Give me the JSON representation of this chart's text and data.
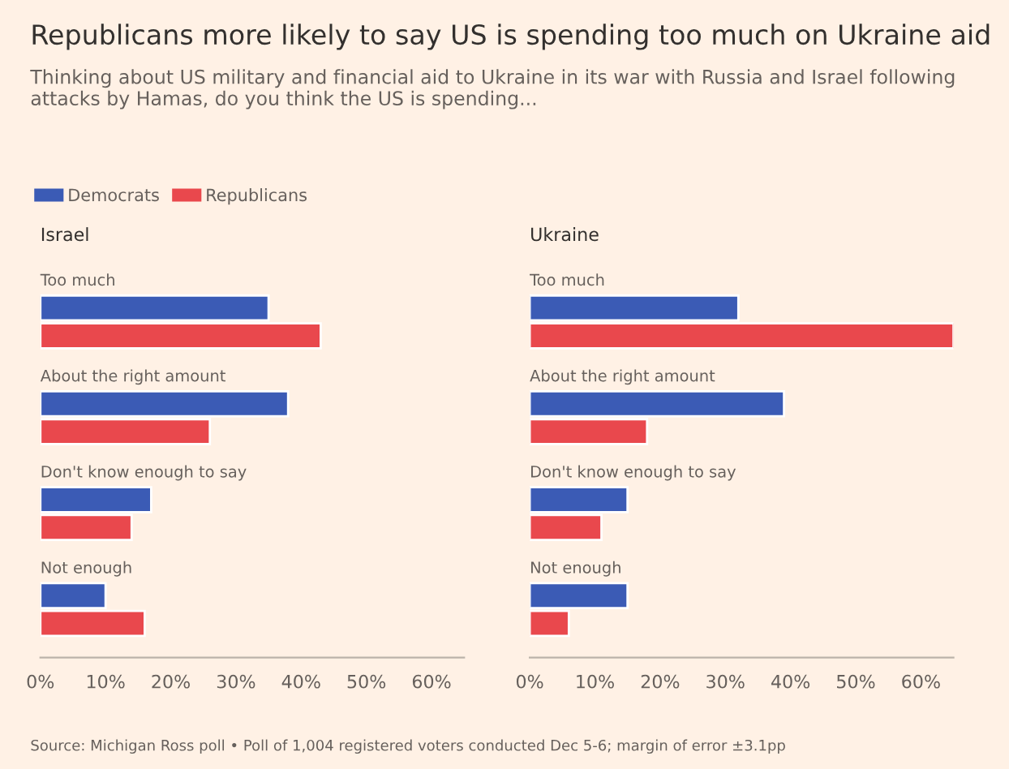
{
  "chart_data": [
    {
      "type": "bar",
      "orientation": "horizontal",
      "title": "Republicans more likely to say US is spending too much on Ukraine aid",
      "subtitle": "Thinking about US military and financial aid to Ukraine in its war with Russia and Israel following attacks by Hamas, do you think the US is spending...",
      "legend": "top left",
      "xlabel": "Israel",
      "categories": [
        "Too much",
        "About the right amount",
        "Don't know enough to say",
        "Not enough"
      ],
      "series": [
        {
          "name": "Democrats",
          "color": "#3b5bb5",
          "values": [
            35,
            38,
            17,
            10
          ]
        },
        {
          "name": "Republicans",
          "color": "#e9484d",
          "values": [
            43,
            26,
            14,
            16
          ]
        }
      ],
      "xlim": [
        0,
        65
      ],
      "xticks": [
        {
          "value": 0,
          "label": "0%"
        },
        {
          "value": 10,
          "label": "10%"
        },
        {
          "value": 20,
          "label": "20%"
        },
        {
          "value": 30,
          "label": "30%"
        },
        {
          "value": 40,
          "label": "40%"
        },
        {
          "value": 50,
          "label": "50%"
        },
        {
          "value": 60,
          "label": "60%"
        }
      ],
      "grid": false,
      "annotations": [
        "Source: Michigan Ross poll • Poll of 1,004 registered voters conducted Dec 5-6; margin of error ±3.1pp"
      ]
    },
    {
      "type": "bar",
      "orientation": "horizontal",
      "xlabel": "Ukraine",
      "categories": [
        "Too much",
        "About the right amount",
        "Don't know enough to say",
        "Not enough"
      ],
      "series": [
        {
          "color": "#3b5bb5",
          "values": [
            32,
            39,
            15,
            15
          ]
        },
        {
          "color": "#e9484d",
          "values": [
            65,
            18,
            11,
            6
          ]
        }
      ],
      "xlim": [
        0,
        65
      ],
      "xticks": [
        {
          "value": 0,
          "label": "0%"
        },
        {
          "value": 10,
          "label": "10%"
        },
        {
          "value": 20,
          "label": "20%"
        },
        {
          "value": 30,
          "label": "30%"
        },
        {
          "value": 40,
          "label": "40%"
        },
        {
          "value": 50,
          "label": "50%"
        },
        {
          "value": 60,
          "label": "60%"
        }
      ],
      "grid": false
    }
  ]
}
